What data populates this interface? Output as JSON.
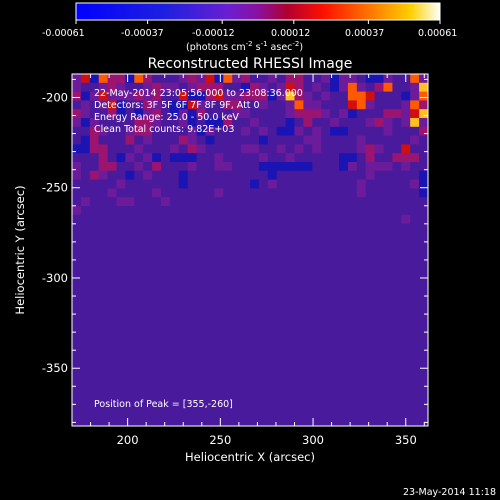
{
  "chart_data": {
    "type": "heatmap",
    "title": "Reconstructed RHESSI Image",
    "xlabel": "Heliocentric X (arcsec)",
    "ylabel": "Heliocentric Y (arcsec)",
    "xlim": [
      170,
      362
    ],
    "ylim": [
      -382,
      -187
    ],
    "x_ticks": [
      200,
      250,
      300,
      350
    ],
    "y_ticks": [
      -200,
      -250,
      -300,
      -350
    ],
    "grid": false,
    "colorbar": {
      "tick_labels": [
        "-0.00061",
        "-0.00037",
        "-0.00012",
        "0.00012",
        "0.00037",
        "0.00061"
      ],
      "range": [
        -0.00061,
        0.00061
      ],
      "units_text": "(photons cm",
      "units_exp1": "-2",
      "units_mid": " s",
      "units_exp2": "-1",
      "units_end": " asec",
      "units_exp3": "-2",
      "units_close": ")"
    },
    "annotations": [
      "22-May-2014 23:05:56.000 to 23:08:36.000",
      "Detectors: 3F 5F 6F 7F 8F 9F, Att 0",
      "Energy Range: 25.0 - 50.0 keV",
      "Clean     Total counts: 9.82E+03"
    ],
    "peak_label": "Position of Peak = [355,-260]",
    "peak_position": [
      355,
      -260
    ],
    "grid_size": [
      40,
      40
    ],
    "cells": [
      "ceafddafdbbbcdceafcdbbcbddbbcaccbaacbbfc",
      "cbbcdcbbcdccbcdddbbadcbcedbcbacfcbdfbbcg",
      "dacecccdcdbbeaadeccdddacgdcbcbbffebbbacf",
      "bcbceabbdcbaaecbbddbbcbbcfccbbbefcbbbcfd",
      "dcbbdabacdbacadbbbccbbbbcdddcbcabbbddceg",
      "cacbbbbddcbbcabaadbbcbbbabdbbcbbbcdcbcgc",
      "bbdcbbcddbbbbcacbbbcbcbaacbcbaabbbbcbbbd",
      "badbbbdbcbbbdcbabbbbbabbbbccbbbbcbbbbbcb",
      "aaddbbbcbbbcbdcbbbbccbbcbcbcbbbbcdcbbebb",
      "bbbdbacbcabaaabbcbbbbcbbcbbbbbaabdbbdddb",
      "cbbddbbcbdbbbcbbccbbbaaaaaabbbacbcccbcbb",
      "cbdcbbabcbbbabbbbbbbbbabbbbbbbbbbcbbbbba",
      "bbbbbcbbbbbbabbbbbbbabcbbbbbbbbbcbbbbbca",
      "bbbbcbbbbcbbbbbbcbbbbbbbbbbbbbbbcbbbbbba",
      "bcbbbccbbbcbbbbbbbbbbbbbbbbbbbbbbbbbbbbb",
      "cbbbbbbbbbbbbbbbbbbbbbbbbbbbbbbbbbbbbbbb",
      "bbbbbbbbbbbbbbbbbbbbbbbbbbbbbbbbbbbbbcbb",
      "bbbbbbbbbbbbbbbbbbbbbbbbbbbbbbbbbbbbbbbb",
      "bbbbbbbbbbbbbbbbbbbbbbbbbbbbbbbbbbbbbbbb",
      "bbbbbbbbbbbbbbbbbbbbbbbbbbbbbbbbbbbbbbbb",
      "bbbbbbbbbbbbbbbbbbbbbbbbbbbbbbbbbbbbbbbb",
      "bbbbbbbbbbbbbbbbbbbbbbbbbbbbbbbbbbbbbbbb",
      "bbbbbbbbbbbbbbbbbbbbbbbbbbbbbbbbbbbbbbbb",
      "bbbbbbbbbbbbbbbbbbbbbbbbbbbbbbbbbbbbbbbb",
      "bbbbbbbbbbbbbbbbbbbbbbbbbbbbbbbbbbbbbbbb",
      "bbbbbbbbbbbbbbbbbbbbbbbbbbbbbbbbbbbbbbbb",
      "bbbbbbbbbbbbbbbbbbbbbbbbbbbbbbbbbbbbbbbb",
      "bbbbbbbbbbbbbbbbbbbbbbbbbbbbbbbbbbbbbbbb",
      "bbbbbbbbbbbbbbbbbbbbbbbbbbbbbbbbbbbbbbbb",
      "bbbbbbbbbbbbbbbbbbbbbbbbbbbbbbbbbbbbbbbb",
      "bbbbbbbbbbbbbbbbbbbbbbbbbbbbbbbbbbbbbbbb",
      "bbbbbbbbbbbbbbbbbbbbbbbbbbbbbbbbbbbbbbbb",
      "bbbbbbbbbbbbbbbbbbbbbbbbbbbbbbbbbbbbbbbb",
      "bbbbbbbbbbbbbbbbbbbbbbbbbbbbbbbbbbbbbbbb",
      "bbbbbbbbbbbbbbbbbbbbbbbbbbbbbbbbbbbbbbbb",
      "bbbbbbbbbbbbbbbbbbbbbbbbbbbbbbbbbbbbbbbb",
      "bbbbbbbbbbbbbbbbbbbbbbbbbbbbbbbbbbbbbbbb",
      "bbbbbbbbbbbbbbbbbbbbbbbbbbbbbbbbbbbbbbbb",
      "bbbbbbbbbbbbbbbbbbbbbbbbbbbbbbbbbbbbbbbb",
      "bbbbbbbbbbbbbbbbbbbbbbbbbbbbbbbbbbbbbbbb"
    ]
  },
  "footer": {
    "timestamp": "23-May-2014 11:18"
  }
}
